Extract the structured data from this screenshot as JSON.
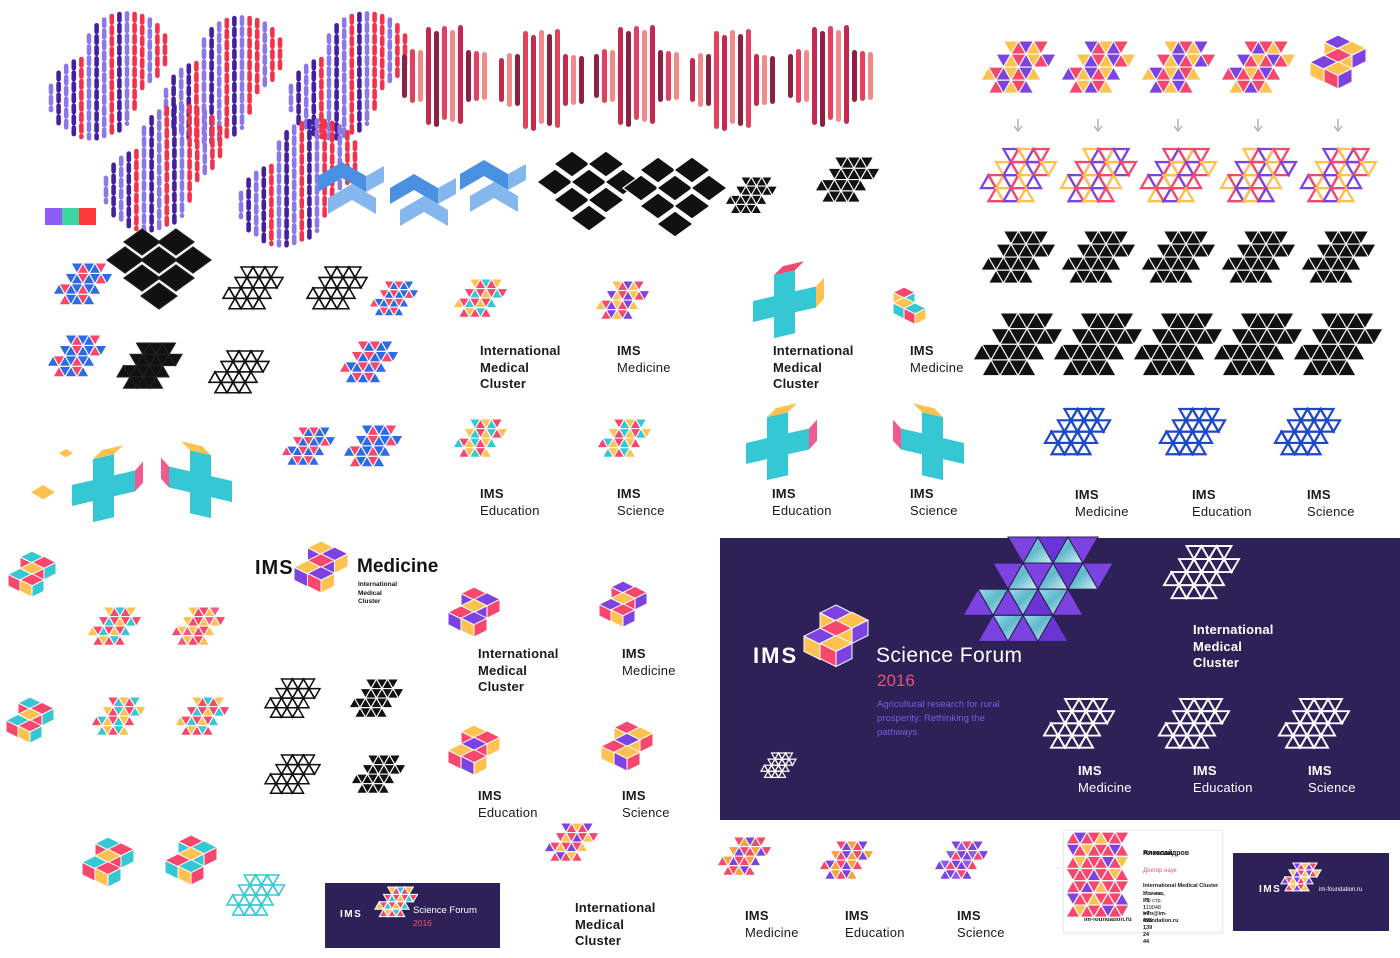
{
  "labels": {
    "ims": "IMS",
    "imc_lines": [
      "International",
      "Medical",
      "Cluster"
    ],
    "medicine": "Medicine",
    "education": "Education",
    "science": "Science"
  },
  "banner": {
    "title": "Science Forum",
    "year": "2016",
    "tagline_lines": [
      "Agricultural research for rural",
      "prosperity: Rethinking the",
      "pathways"
    ]
  },
  "small_banner": {
    "title": "Science Forum",
    "year": "2016"
  },
  "business_card": {
    "name_lines": [
      "Николай",
      "Александров"
    ],
    "role": "Доктор наук",
    "org": "International Medical Cluster",
    "address_lines": [
      "Усачева, 35, стр. 1",
      "Москва, РФ 119048"
    ],
    "phone": "+7 495 139 24 44",
    "email": "info@im-foundation.ru",
    "website": "im-foundation.ru"
  },
  "dark_card": {
    "website": "im-foundation.ru"
  },
  "icons": {
    "arrow_down": "↓"
  },
  "colors": {
    "background": "#FFFFFF",
    "banner_bg": "#2E2157",
    "accent_pink": "#E8517C",
    "tagline_purple": "#7A5CE0",
    "text_dark": "#1B1B1B",
    "arrow_gray": "#AAAAAA"
  },
  "swatch": [
    "#8B5CF6",
    "#3DD6A3",
    "#FF3A3A"
  ],
  "palettes": {
    "brand1": [
      "#FFC14F",
      "#7C43E0",
      "#F8476C"
    ],
    "brand2": [
      "#7C43E0",
      "#F8476C",
      "#FFC14F"
    ],
    "brand3": [
      "#FFC14F",
      "#F8476C",
      "#7C43E0"
    ],
    "brand4": [
      "#F8476C",
      "#7C43E0",
      "#F8476C",
      "#FFC14F"
    ],
    "black": [
      "#111111"
    ],
    "white": [
      "#FFFFFF"
    ],
    "royal": [
      "#1D49C8"
    ],
    "cyan": [
      "#35C8D4"
    ],
    "bluePink": [
      "#2D6BE4",
      "#F8476C",
      "#2D6BE4"
    ],
    "pinkBlue": [
      "#F8476C",
      "#2D6BE4",
      "#F8476C",
      "#2D6BE4",
      "#2D6BE4"
    ],
    "tyPink": [
      "#FFC14F",
      "#F8476C",
      "#35C8D4",
      "#F8476C"
    ],
    "tealMix": [
      "#35C8D4",
      "#F8476C",
      "#FFC14F"
    ],
    "pinkTeal": [
      "#F8476C",
      "#35C8D4",
      "#FFC14F"
    ],
    "yp": [
      "#FFC14F",
      "#F8476C",
      "#F8476C",
      "#FFC14F",
      "#F05A8E"
    ],
    "sunset": [
      "#F8476C",
      "#F9A03F",
      "#7C43E0",
      "#F8476C"
    ],
    "sunset2": [
      "#F8476C",
      "#7C43E0",
      "#F9A03F"
    ],
    "violet": [
      "#7C43E0",
      "#8E5BE8",
      "#F8476C",
      "#7C43E0"
    ],
    "bottomPurple": [
      "#7C43E0",
      "#F8476C",
      "#FFC14F",
      "#F8476C"
    ],
    "bcardPattern": [
      "#F8476C",
      "#7C43E0",
      "#F8476C",
      "#F8476C",
      "#FFC14F",
      "#F8476C",
      "#F8476C",
      "#F8476C",
      "#7C43E0",
      "#F8476C",
      "#FFC14F",
      "#F8476C",
      "#F8476C"
    ],
    "dotted": [
      "#8B7AE6",
      "#45209E",
      "#F2334D"
    ],
    "bars1": [
      "#8E2040",
      "#E0435C",
      "#F28A8A",
      "#C22B50"
    ],
    "bars2": [
      "#C22B50",
      "#F28A8A",
      "#8E2040",
      "#E0435C"
    ],
    "blueRibbon": [
      "#4A90E2",
      "#85B6EE"
    ],
    "texPurple": [
      "#7C43E0",
      "url(#tex)",
      "#6A35D4",
      "url(#tex)",
      "#7C43E0",
      "#7C43E0",
      "url(#tex)"
    ],
    "cubeBrand": [
      "#7C43E0",
      "#FFC14F",
      "#F8476C"
    ],
    "cubeMedK": [
      "#FFC14F",
      "#7C43E0",
      "#F8476C"
    ],
    "cubeN1": [
      "#F8476C",
      "#7C43E0",
      "#FFC14F"
    ],
    "cubeN2": [
      "#7C43E0",
      "#F8476C",
      "#FFC14F"
    ],
    "cubeN3": [
      "#FFC14F",
      "#F8476C",
      "#7C43E0"
    ],
    "cubeN4": [
      "#F8476C",
      "#FFC14F",
      "#7C43E0"
    ],
    "tealCube": [
      "#35C8D4",
      "#F8476C",
      "#FFC14F"
    ],
    "pinkTealCube": [
      "#F8476C",
      "#35C8D4",
      "#FFC14F"
    ],
    "stepCube": [
      "#F8476C",
      "#FFC14F",
      "#35C8D4"
    ],
    "crossTeal": [
      "#35C8D4",
      "#F8476C",
      "#FFC14F"
    ],
    "crossTeal2": [
      "#35C8D4",
      "#FFC14F",
      "#F05A8E"
    ]
  }
}
